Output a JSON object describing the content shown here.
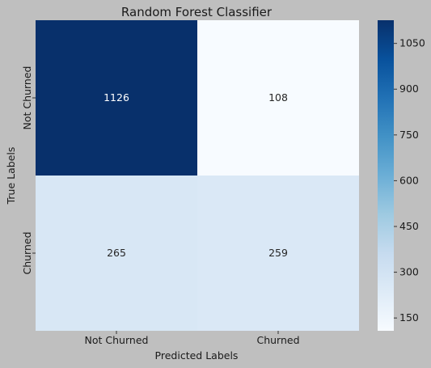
{
  "chart_data": {
    "type": "heatmap",
    "title": "Random Forest Classifier",
    "xlabel": "Predicted Labels",
    "ylabel": "True Labels",
    "x_categories": [
      "Not Churned",
      "Churned"
    ],
    "y_categories": [
      "Not Churned",
      "Churned"
    ],
    "values": [
      [
        1126,
        108
      ],
      [
        265,
        259
      ]
    ],
    "colorbar": {
      "colormap": "Blues",
      "range": [
        108,
        1126
      ],
      "ticks": [
        150,
        300,
        450,
        600,
        750,
        900,
        1050
      ]
    },
    "grid": false
  }
}
